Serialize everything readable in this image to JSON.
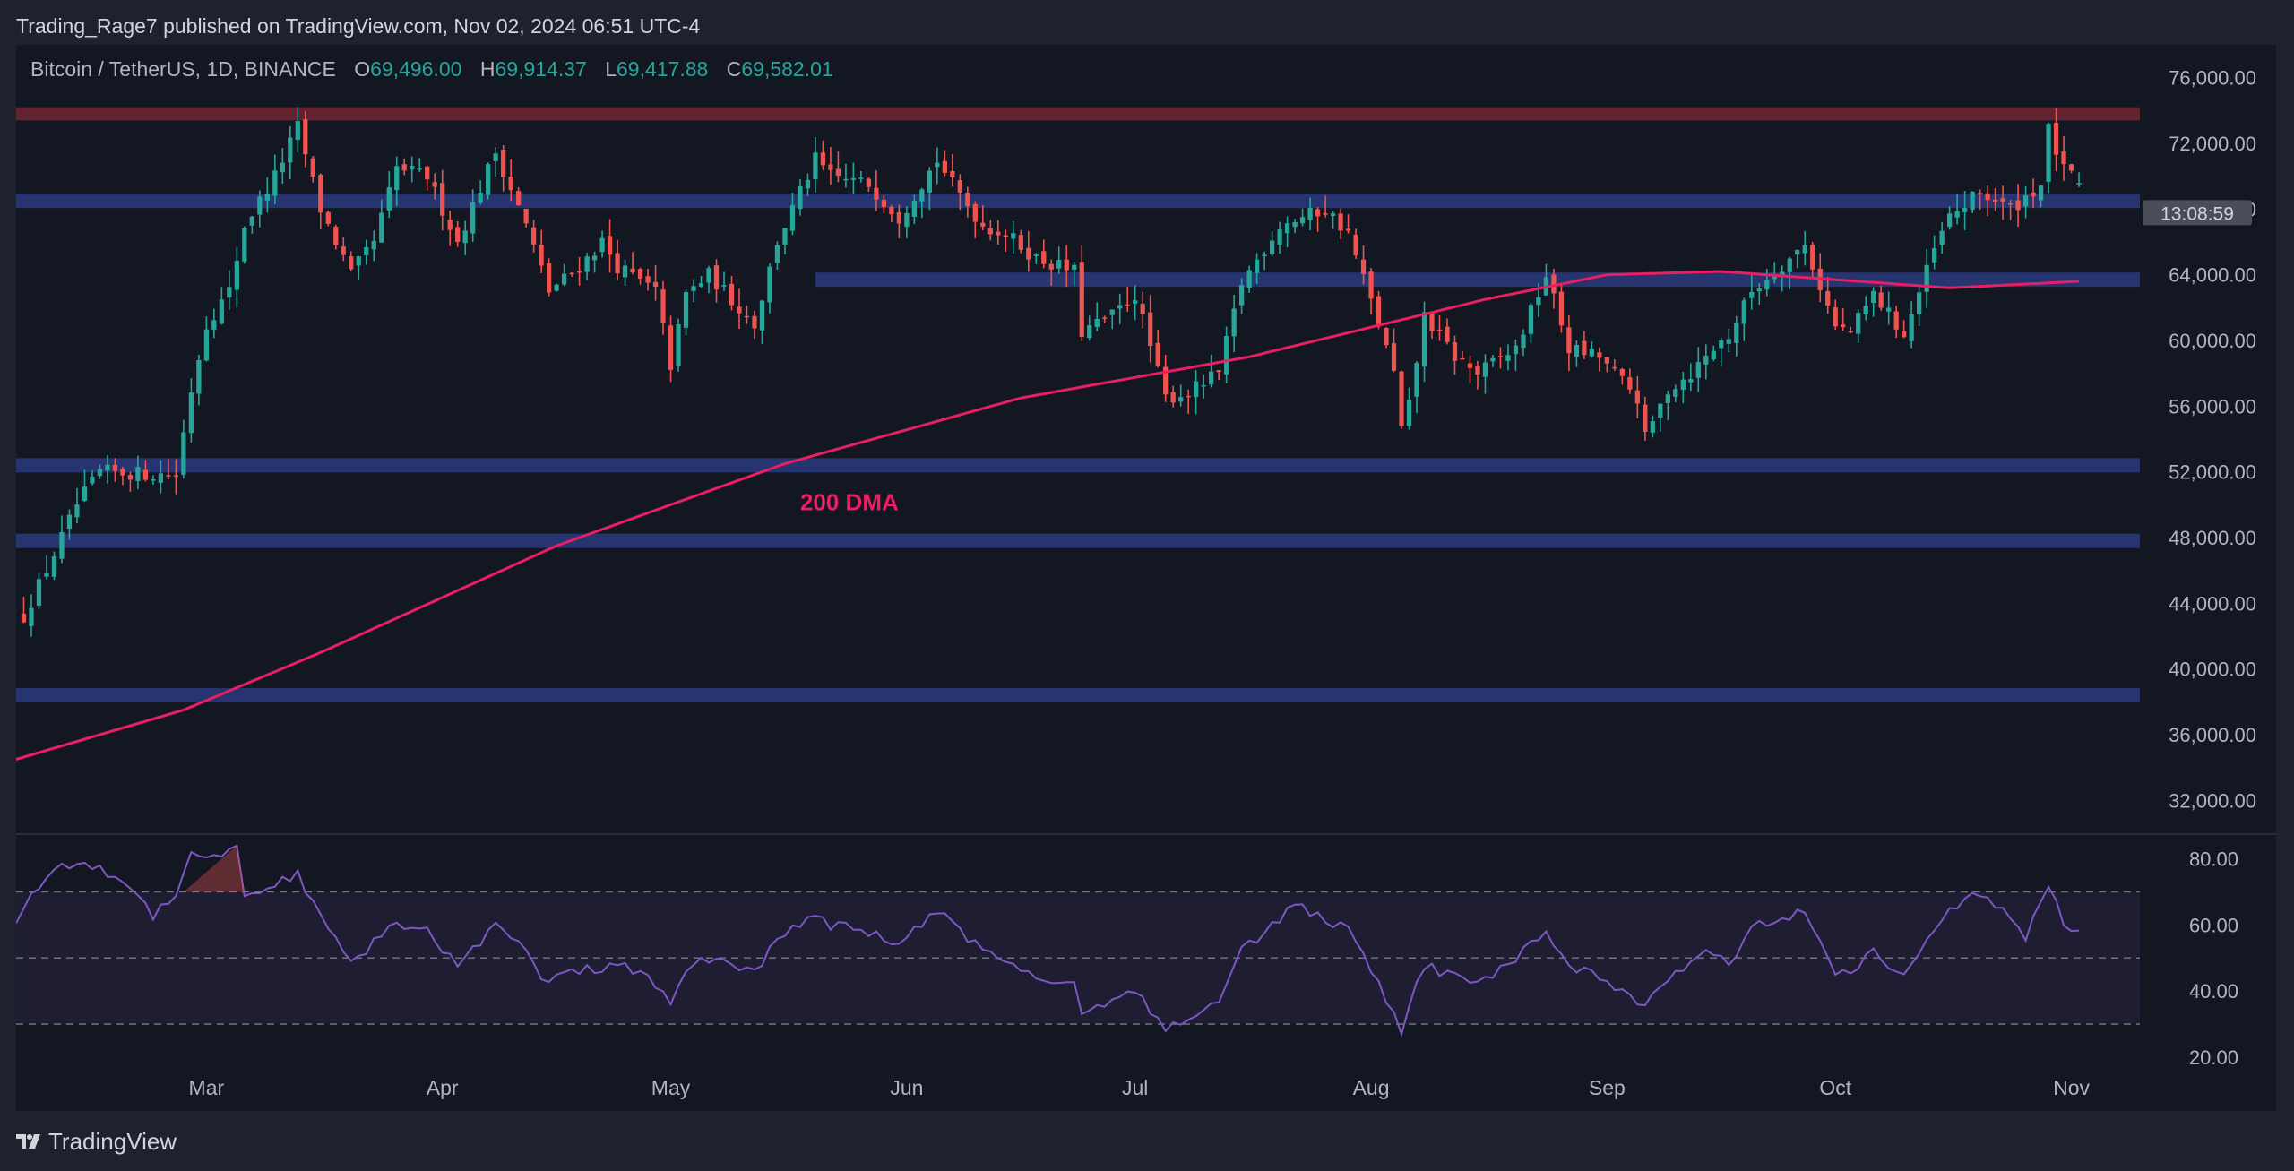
{
  "header": {
    "published": "Trading_Rage7 published on TradingView.com, Nov 02, 2024 06:51 UTC-4"
  },
  "legend": {
    "symbol": "Bitcoin / TetherUS, 1D, BINANCE",
    "o_label": "O",
    "o_value": "69,496.00",
    "h_label": "H",
    "h_value": "69,914.37",
    "l_label": "L",
    "l_value": "69,417.88",
    "c_label": "C",
    "c_value": "69,582.01"
  },
  "footer": {
    "brand": "TradingView"
  },
  "colors": {
    "background": "#131722",
    "page": "#1e222d",
    "up": "#26a69a",
    "down": "#ef5350",
    "dma": "#e91e63",
    "sr_band": "#2a3a7c",
    "resistance_band": "#6b2530",
    "rsi_line": "#7e57c2",
    "countdown_bg": "#4a4e59"
  },
  "chart_data": [
    {
      "type": "candlestick",
      "title": "Bitcoin / TetherUS, 1D, BINANCE",
      "x_range": [
        "2024-02-05",
        "2024-11-10"
      ],
      "x_ticks": [
        {
          "date": "2024-03-01",
          "label": "Mar"
        },
        {
          "date": "2024-04-01",
          "label": "Apr"
        },
        {
          "date": "2024-05-01",
          "label": "May"
        },
        {
          "date": "2024-06-01",
          "label": "Jun"
        },
        {
          "date": "2024-07-01",
          "label": "Jul"
        },
        {
          "date": "2024-08-01",
          "label": "Aug"
        },
        {
          "date": "2024-09-01",
          "label": "Sep"
        },
        {
          "date": "2024-10-01",
          "label": "Oct"
        },
        {
          "date": "2024-11-01",
          "label": "Nov"
        }
      ],
      "ylim": [
        30000,
        78000
      ],
      "y_ticks": [
        {
          "value": 76000,
          "label": "76,000.00"
        },
        {
          "value": 72000,
          "label": "72,000.00"
        },
        {
          "value": 68000,
          "label": "68,000.00"
        },
        {
          "value": 64000,
          "label": "64,000.00"
        },
        {
          "value": 60000,
          "label": "60,000.00"
        },
        {
          "value": 56000,
          "label": "56,000.00"
        },
        {
          "value": 52000,
          "label": "52,000.00"
        },
        {
          "value": 48000,
          "label": "48,000.00"
        },
        {
          "value": 44000,
          "label": "44,000.00"
        },
        {
          "value": 40000,
          "label": "40,000.00"
        },
        {
          "value": 36000,
          "label": "36,000.00"
        },
        {
          "value": 32000,
          "label": "32,000.00"
        }
      ],
      "countdown_label": "13:08:59",
      "current_price": 69582.01,
      "close_anchors": [
        [
          "2024-02-06",
          43200
        ],
        [
          "2024-02-10",
          47000
        ],
        [
          "2024-02-13",
          50000
        ],
        [
          "2024-02-16",
          52000
        ],
        [
          "2024-02-26",
          51800
        ],
        [
          "2024-02-28",
          57000
        ],
        [
          "2024-03-01",
          61000
        ],
        [
          "2024-03-04",
          63000
        ],
        [
          "2024-03-06",
          67000
        ],
        [
          "2024-03-10",
          70000
        ],
        [
          "2024-03-13",
          73000
        ],
        [
          "2024-03-16",
          68000
        ],
        [
          "2024-03-20",
          64000
        ],
        [
          "2024-03-23",
          66000
        ],
        [
          "2024-03-26",
          70500
        ],
        [
          "2024-03-30",
          70000
        ],
        [
          "2024-04-03",
          66000
        ],
        [
          "2024-04-08",
          71500
        ],
        [
          "2024-04-12",
          67000
        ],
        [
          "2024-04-15",
          63000
        ],
        [
          "2024-04-19",
          64500
        ],
        [
          "2024-04-22",
          66000
        ],
        [
          "2024-04-24",
          64500
        ],
        [
          "2024-04-29",
          63000
        ],
        [
          "2024-05-01",
          58500
        ],
        [
          "2024-05-03",
          62800
        ],
        [
          "2024-05-06",
          64000
        ],
        [
          "2024-05-12",
          61000
        ],
        [
          "2024-05-15",
          66000
        ],
        [
          "2024-05-20",
          71000
        ],
        [
          "2024-05-22",
          70000
        ],
        [
          "2024-05-27",
          69500
        ],
        [
          "2024-05-31",
          67500
        ],
        [
          "2024-06-05",
          71000
        ],
        [
          "2024-06-07",
          69500
        ],
        [
          "2024-06-11",
          67000
        ],
        [
          "2024-06-14",
          66500
        ],
        [
          "2024-06-18",
          65000
        ],
        [
          "2024-06-23",
          64200
        ],
        [
          "2024-06-24",
          60500
        ],
        [
          "2024-06-28",
          61500
        ],
        [
          "2024-07-01",
          62800
        ],
        [
          "2024-07-05",
          56500
        ],
        [
          "2024-07-08",
          56800
        ],
        [
          "2024-07-12",
          58000
        ],
        [
          "2024-07-15",
          63500
        ],
        [
          "2024-07-20",
          67000
        ],
        [
          "2024-07-26",
          68000
        ],
        [
          "2024-07-29",
          66500
        ],
        [
          "2024-08-02",
          61000
        ],
        [
          "2024-08-04",
          58000
        ],
        [
          "2024-08-05",
          54500
        ],
        [
          "2024-08-06",
          56000
        ],
        [
          "2024-08-08",
          61500
        ],
        [
          "2024-08-12",
          59000
        ],
        [
          "2024-08-15",
          58000
        ],
        [
          "2024-08-20",
          59500
        ],
        [
          "2024-08-24",
          64000
        ],
        [
          "2024-08-27",
          59500
        ],
        [
          "2024-08-31",
          59000
        ],
        [
          "2024-09-05",
          56500
        ],
        [
          "2024-09-06",
          54000
        ],
        [
          "2024-09-09",
          57000
        ],
        [
          "2024-09-12",
          58000
        ],
        [
          "2024-09-15",
          59500
        ],
        [
          "2024-09-17",
          60300
        ],
        [
          "2024-09-20",
          63000
        ],
        [
          "2024-09-27",
          65800
        ],
        [
          "2024-10-01",
          60800
        ],
        [
          "2024-10-03",
          60500
        ],
        [
          "2024-10-06",
          62800
        ],
        [
          "2024-10-09",
          61000
        ],
        [
          "2024-10-10",
          60300
        ],
        [
          "2024-10-14",
          65500
        ],
        [
          "2024-10-16",
          67500
        ],
        [
          "2024-10-20",
          69000
        ],
        [
          "2024-10-24",
          68000
        ],
        [
          "2024-10-28",
          69500
        ],
        [
          "2024-10-29",
          72800
        ],
        [
          "2024-10-31",
          70300
        ],
        [
          "2024-11-02",
          69582
        ]
      ],
      "dma_label": "200 DMA",
      "dma_anchors": [
        [
          "2024-02-05",
          34500
        ],
        [
          "2024-02-27",
          37500
        ],
        [
          "2024-03-16",
          41000
        ],
        [
          "2024-04-16",
          47500
        ],
        [
          "2024-05-16",
          52500
        ],
        [
          "2024-06-16",
          56500
        ],
        [
          "2024-07-16",
          59000
        ],
        [
          "2024-08-16",
          62500
        ],
        [
          "2024-09-01",
          64000
        ],
        [
          "2024-09-16",
          64200
        ],
        [
          "2024-10-01",
          63700
        ],
        [
          "2024-10-16",
          63200
        ],
        [
          "2024-11-02",
          63600
        ]
      ],
      "support_levels": [
        68500,
        63700,
        52400,
        47800,
        38400
      ],
      "resistance_band": [
        73400,
        74200
      ]
    },
    {
      "type": "line",
      "series_role": "RSI oscillator",
      "ylim": [
        20,
        85
      ],
      "y_ticks": [
        {
          "value": 80,
          "label": "80.00"
        },
        {
          "value": 60,
          "label": "60.00"
        },
        {
          "value": 40,
          "label": "40.00"
        },
        {
          "value": 20,
          "label": "20.00"
        }
      ],
      "band": [
        30,
        70
      ],
      "midline": 50,
      "anchors": [
        [
          "2024-02-05",
          62
        ],
        [
          "2024-02-09",
          75
        ],
        [
          "2024-02-12",
          78
        ],
        [
          "2024-02-15",
          78
        ],
        [
          "2024-02-20",
          72
        ],
        [
          "2024-02-23",
          63
        ],
        [
          "2024-02-26",
          70
        ],
        [
          "2024-02-28",
          82
        ],
        [
          "2024-03-02",
          80
        ],
        [
          "2024-03-05",
          84
        ],
        [
          "2024-03-06",
          69
        ],
        [
          "2024-03-10",
          72
        ],
        [
          "2024-03-13",
          76
        ],
        [
          "2024-03-15",
          66
        ],
        [
          "2024-03-18",
          55
        ],
        [
          "2024-03-20",
          48
        ],
        [
          "2024-03-23",
          55
        ],
        [
          "2024-03-26",
          60
        ],
        [
          "2024-03-30",
          58
        ],
        [
          "2024-04-03",
          48
        ],
        [
          "2024-04-08",
          60
        ],
        [
          "2024-04-12",
          52
        ],
        [
          "2024-04-14",
          43
        ],
        [
          "2024-04-19",
          46
        ],
        [
          "2024-04-24",
          48
        ],
        [
          "2024-04-28",
          44
        ],
        [
          "2024-05-01",
          36
        ],
        [
          "2024-05-03",
          46
        ],
        [
          "2024-05-06",
          50
        ],
        [
          "2024-05-12",
          46
        ],
        [
          "2024-05-15",
          55
        ],
        [
          "2024-05-20",
          64
        ],
        [
          "2024-05-22",
          60
        ],
        [
          "2024-05-27",
          58
        ],
        [
          "2024-05-31",
          54
        ],
        [
          "2024-06-05",
          64
        ],
        [
          "2024-06-07",
          60
        ],
        [
          "2024-06-11",
          52
        ],
        [
          "2024-06-14",
          50
        ],
        [
          "2024-06-18",
          44
        ],
        [
          "2024-06-23",
          42
        ],
        [
          "2024-06-24",
          33
        ],
        [
          "2024-06-28",
          38
        ],
        [
          "2024-07-01",
          40
        ],
        [
          "2024-07-05",
          29
        ],
        [
          "2024-07-08",
          30
        ],
        [
          "2024-07-12",
          38
        ],
        [
          "2024-07-15",
          52
        ],
        [
          "2024-07-20",
          62
        ],
        [
          "2024-07-22",
          66
        ],
        [
          "2024-07-26",
          62
        ],
        [
          "2024-07-29",
          58
        ],
        [
          "2024-08-02",
          42
        ],
        [
          "2024-08-05",
          28
        ],
        [
          "2024-08-08",
          48
        ],
        [
          "2024-08-12",
          44
        ],
        [
          "2024-08-15",
          42
        ],
        [
          "2024-08-20",
          50
        ],
        [
          "2024-08-24",
          58
        ],
        [
          "2024-08-27",
          48
        ],
        [
          "2024-08-31",
          44
        ],
        [
          "2024-09-06",
          36
        ],
        [
          "2024-09-09",
          42
        ],
        [
          "2024-09-12",
          50
        ],
        [
          "2024-09-15",
          52
        ],
        [
          "2024-09-17",
          48
        ],
        [
          "2024-09-20",
          60
        ],
        [
          "2024-09-27",
          64
        ],
        [
          "2024-10-01",
          46
        ],
        [
          "2024-10-03",
          46
        ],
        [
          "2024-10-06",
          52
        ],
        [
          "2024-10-10",
          44
        ],
        [
          "2024-10-14",
          58
        ],
        [
          "2024-10-16",
          64
        ],
        [
          "2024-10-20",
          70
        ],
        [
          "2024-10-24",
          62
        ],
        [
          "2024-10-26",
          56
        ],
        [
          "2024-10-29",
          72
        ],
        [
          "2024-10-31",
          60
        ],
        [
          "2024-11-02",
          58
        ]
      ]
    }
  ]
}
